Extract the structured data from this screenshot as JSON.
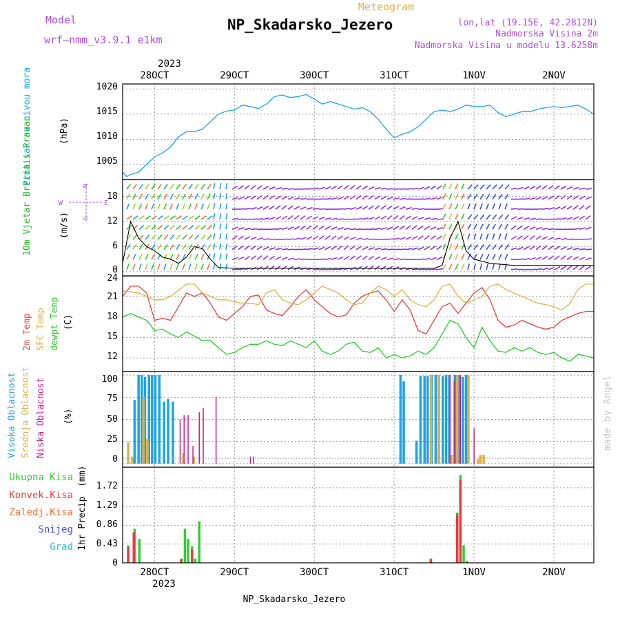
{
  "header": {
    "model_label": "Model",
    "model_name": "wrf—nmm_v3.9.1 e1km",
    "product": "Meteogram",
    "station": "NP_Skadarsko_Jezero",
    "coords": "lon,lat (19.15E, 42.2812N)",
    "elev_station": "Nadmorska Visina 2m",
    "elev_model": "Nadmorska Visina u modelu 13.6258m",
    "footer_station": "NP_Skadarsko_Jezero",
    "credit": "made by Angel"
  },
  "time_axis": {
    "start_day": 27.6,
    "end_day": 33.5,
    "ticks": [
      {
        "day": 28,
        "label": "28OCT"
      },
      {
        "day": 29,
        "label": "29OCT"
      },
      {
        "day": 30,
        "label": "30OCT"
      },
      {
        "day": 31,
        "label": "31OCT"
      },
      {
        "day": 32,
        "label": "1NOV"
      },
      {
        "day": 33,
        "label": "2NOV"
      }
    ],
    "year_label": "2023"
  },
  "colors": {
    "pressure": "#1aa3e8",
    "temp2m": "#e83c3c",
    "sfc_temp": "#e0b040",
    "dewpt": "#22cc22",
    "high_cloud": "#1aa3e8",
    "mid_cloud": "#e0b040",
    "low_cloud": "#cc1a88",
    "total_precip": "#33cc33",
    "conv_precip": "#e83c3c",
    "snow": "#5050e0",
    "graupel": "#33c0c0",
    "wind_label": "#22bb22",
    "legend_purple": "#b04ce0"
  },
  "chart_data": [
    {
      "type": "line",
      "panel": "pressure",
      "ylabel": "Pritisak na nivou mora",
      "unit": "(hPa)",
      "ylim": [
        1002,
        1021
      ],
      "yticks": [
        "1005",
        "1010",
        "1015",
        "1020"
      ],
      "grid": true,
      "series": [
        {
          "x": [
            27.6,
            27.65,
            27.7,
            27.8,
            27.9,
            28.0,
            28.1,
            28.2,
            28.3,
            28.4,
            28.5,
            28.6,
            28.7,
            28.8,
            28.9,
            29.0,
            29.1,
            29.2,
            29.3,
            29.4,
            29.5,
            29.6,
            29.7,
            29.8,
            29.9,
            30.0,
            30.1,
            30.2,
            30.3,
            30.4,
            30.5,
            30.6,
            30.7,
            30.8,
            30.9,
            31.0,
            31.1,
            31.2,
            31.3,
            31.4,
            31.5,
            31.6,
            31.7,
            31.8,
            31.9,
            32.0,
            32.1,
            32.2,
            32.3,
            32.4,
            32.5,
            32.6,
            32.7,
            32.8,
            32.9,
            33.0,
            33.1,
            33.2,
            33.3,
            33.4,
            33.5
          ],
          "y": [
            1003.5,
            1002.6,
            1003.0,
            1003.5,
            1005.0,
            1006.5,
            1007.3,
            1008.5,
            1010.5,
            1011.5,
            1011.5,
            1012.0,
            1013.5,
            1015.0,
            1015.6,
            1015.8,
            1016.8,
            1016.5,
            1016.1,
            1017.0,
            1018.5,
            1018.8,
            1018.3,
            1018.5,
            1018.9,
            1018.0,
            1017.0,
            1017.5,
            1017.0,
            1016.5,
            1016.0,
            1016.3,
            1015.5,
            1014.0,
            1012.0,
            1010.3,
            1011.0,
            1011.5,
            1012.5,
            1014.0,
            1015.5,
            1015.8,
            1015.5,
            1016.0,
            1016.8,
            1016.5,
            1016.5,
            1016.8,
            1015.3,
            1014.5,
            1015.0,
            1015.5,
            1015.5,
            1016.0,
            1016.3,
            1016.5,
            1016.3,
            1016.5,
            1016.8,
            1016.0,
            1015.0
          ],
          "color": "#1aa3e8"
        }
      ]
    },
    {
      "type": "line",
      "panel": "wind",
      "ylabel": "10m Vjetar Brzina i Pravac",
      "unit": "(m/s)",
      "ylim": [
        -1,
        22
      ],
      "yticks": [
        "0",
        "6",
        "12",
        "18"
      ],
      "compass": [
        "N",
        "W",
        "E",
        "S"
      ],
      "series": [
        {
          "name": "speed",
          "x": [
            27.6,
            27.7,
            27.8,
            27.9,
            28.0,
            28.1,
            28.2,
            28.3,
            28.4,
            28.5,
            28.6,
            28.7,
            28.8,
            29.0,
            29.5,
            30.0,
            30.5,
            31.0,
            31.3,
            31.5,
            31.6,
            31.7,
            31.8,
            31.9,
            32.0,
            32.2,
            32.5,
            33.0,
            33.5
          ],
          "y": [
            2.0,
            12.0,
            8.0,
            6.0,
            5.0,
            3.5,
            3.0,
            2.0,
            3.5,
            6.0,
            5.5,
            3.0,
            1.0,
            0.8,
            0.8,
            0.8,
            0.8,
            0.8,
            0.8,
            0.8,
            1.5,
            8.0,
            12.0,
            5.0,
            3.0,
            2.0,
            1.5,
            1.5,
            1.5
          ],
          "color": "#000000"
        }
      ]
    },
    {
      "type": "line",
      "panel": "temperature",
      "ylabel": [
        "2m Temp",
        "SFC Temp",
        "dewpt Temp"
      ],
      "unit": "(C)",
      "ylim": [
        10,
        24
      ],
      "yticks": [
        "12",
        "15",
        "18",
        "21",
        "24"
      ],
      "series": [
        {
          "x": [
            27.6,
            27.7,
            27.8,
            27.9,
            28.0,
            28.1,
            28.2,
            28.3,
            28.4,
            28.5,
            28.6,
            28.7,
            28.8,
            28.9,
            29.0,
            29.1,
            29.2,
            29.3,
            29.4,
            29.5,
            29.6,
            29.7,
            29.8,
            29.9,
            30.0,
            30.1,
            30.2,
            30.3,
            30.4,
            30.5,
            30.6,
            30.7,
            30.8,
            30.9,
            31.0,
            31.1,
            31.2,
            31.3,
            31.4,
            31.5,
            31.6,
            31.7,
            31.8,
            31.9,
            32.0,
            32.1,
            32.2,
            32.3,
            32.4,
            32.5,
            32.6,
            32.7,
            32.8,
            32.9,
            33.0,
            33.1,
            33.2,
            33.3,
            33.4,
            33.5
          ],
          "y": [
            21.0,
            22.5,
            22.5,
            21.5,
            17.5,
            17.8,
            17.5,
            19.5,
            21.5,
            21.0,
            21.5,
            20.0,
            18.0,
            17.5,
            18.5,
            19.5,
            21.0,
            21.2,
            19.0,
            18.5,
            18.2,
            19.5,
            21.0,
            22.0,
            20.5,
            19.5,
            18.5,
            18.0,
            18.3,
            20.0,
            21.0,
            21.5,
            21.8,
            20.5,
            18.8,
            20.5,
            19.0,
            16.0,
            15.5,
            17.5,
            19.5,
            20.0,
            18.5,
            20.0,
            21.5,
            22.3,
            20.5,
            17.5,
            16.5,
            16.8,
            17.5,
            17.0,
            16.5,
            16.2,
            16.5,
            17.5,
            18.0,
            18.5,
            18.8,
            18.8
          ],
          "color": "#e83c3c"
        },
        {
          "x": [
            27.6,
            27.8,
            28.0,
            28.1,
            28.2,
            28.4,
            28.5,
            28.6,
            28.7,
            28.8,
            28.9,
            29.0,
            29.1,
            29.2,
            29.3,
            29.4,
            29.5,
            29.6,
            29.7,
            29.8,
            29.9,
            30.0,
            30.1,
            30.2,
            30.3,
            30.4,
            30.5,
            30.6,
            30.7,
            30.8,
            30.9,
            31.0,
            31.1,
            31.2,
            31.3,
            31.4,
            31.5,
            31.6,
            31.7,
            31.8,
            31.9,
            32.0,
            32.1,
            32.2,
            32.3,
            32.4,
            32.5,
            32.6,
            32.7,
            32.8,
            32.9,
            33.0,
            33.1,
            33.2,
            33.3,
            33.4,
            33.5
          ],
          "y": [
            21.8,
            21.5,
            20.5,
            20.5,
            21.0,
            22.8,
            22.8,
            21.5,
            21.0,
            20.5,
            20.5,
            20.2,
            20.0,
            20.0,
            19.8,
            21.5,
            22.0,
            20.5,
            20.0,
            19.8,
            20.5,
            21.5,
            22.5,
            22.0,
            21.5,
            20.5,
            19.8,
            20.0,
            21.5,
            22.5,
            22.0,
            21.0,
            22.0,
            20.5,
            19.8,
            19.5,
            20.5,
            22.5,
            22.8,
            21.0,
            20.0,
            20.5,
            21.0,
            22.5,
            22.8,
            22.0,
            21.5,
            21.0,
            20.5,
            20.0,
            19.8,
            19.5,
            19.0,
            20.0,
            22.0,
            22.8,
            22.8
          ],
          "color": "#e0b040"
        },
        {
          "x": [
            27.6,
            27.7,
            27.8,
            27.9,
            28.0,
            28.1,
            28.2,
            28.3,
            28.4,
            28.5,
            28.6,
            28.7,
            28.8,
            28.9,
            29.0,
            29.1,
            29.2,
            29.3,
            29.4,
            29.5,
            29.6,
            29.7,
            29.8,
            29.9,
            30.0,
            30.1,
            30.2,
            30.3,
            30.4,
            30.5,
            30.6,
            30.7,
            30.8,
            30.9,
            31.0,
            31.1,
            31.2,
            31.3,
            31.4,
            31.5,
            31.6,
            31.7,
            31.8,
            31.9,
            32.0,
            32.1,
            32.2,
            32.3,
            32.4,
            32.5,
            32.6,
            32.7,
            32.8,
            32.9,
            33.0,
            33.1,
            33.2,
            33.3,
            33.4,
            33.5
          ],
          "y": [
            18.0,
            18.5,
            18.0,
            17.5,
            16.0,
            16.2,
            15.5,
            15.0,
            15.8,
            15.2,
            14.5,
            14.5,
            13.5,
            12.5,
            12.8,
            13.5,
            14.0,
            14.0,
            14.5,
            14.0,
            13.8,
            14.5,
            14.0,
            13.5,
            14.5,
            13.0,
            12.5,
            13.0,
            14.0,
            14.3,
            13.0,
            12.8,
            13.5,
            12.0,
            12.5,
            12.0,
            12.3,
            13.0,
            12.5,
            13.5,
            15.5,
            17.5,
            17.0,
            15.0,
            13.5,
            16.5,
            14.5,
            13.0,
            12.8,
            13.5,
            13.0,
            13.5,
            12.8,
            12.5,
            12.8,
            12.0,
            11.5,
            12.5,
            12.3,
            12.0
          ],
          "color": "#22cc22"
        }
      ]
    },
    {
      "type": "bar",
      "panel": "cloud",
      "ylabel": [
        "Visoka Oblacnost",
        "Srednja Oblacnost",
        "Niska Oblacnost"
      ],
      "unit": "(%)",
      "ylim": [
        -4,
        104
      ],
      "yticks": [
        "0",
        "25",
        "50",
        "75",
        "100"
      ],
      "series": [
        {
          "x": [
            27.75,
            27.8,
            27.84,
            27.88,
            27.93,
            27.97,
            28.01,
            28.06,
            28.12,
            28.17,
            28.23,
            31.08,
            31.12,
            31.28,
            31.33,
            31.38,
            31.42,
            31.47,
            31.52,
            31.56,
            31.61,
            31.65,
            31.69,
            31.76,
            31.81,
            31.86,
            31.9
          ],
          "y": [
            72,
            100,
            100,
            98,
            100,
            100,
            100,
            100,
            70,
            73,
            70,
            100,
            93,
            26,
            99,
            99,
            99,
            100,
            100,
            100,
            99,
            100,
            100,
            100,
            100,
            98,
            100
          ],
          "color": "#1aa3e8"
        },
        {
          "x": [
            27.67,
            27.72,
            27.86,
            27.91,
            28.36,
            28.49,
            31.46,
            31.56,
            31.72,
            31.79,
            31.93,
            32.05,
            32.08,
            32.12
          ],
          "y": [
            24,
            8,
            75,
            28,
            12,
            8,
            100,
            100,
            10,
            100,
            100,
            5,
            10,
            10
          ],
          "color": "#e0b040"
        },
        {
          "x": [
            28.32,
            28.37,
            28.42,
            28.48,
            28.56,
            28.61,
            28.77,
            29.2,
            29.24,
            31.7,
            31.75,
            31.83,
            32.0
          ],
          "y": [
            50,
            55,
            55,
            20,
            58,
            63,
            75,
            8,
            8,
            100,
            93,
            100,
            40
          ],
          "color": "#cc1a88"
        }
      ]
    },
    {
      "type": "bar",
      "panel": "precip",
      "ylabel": "1hr Precip",
      "unit": "(mm)",
      "ylim": [
        0,
        2.19
      ],
      "yticks": [
        "0",
        "0.43",
        "0.86",
        "1.29",
        "1.72"
      ],
      "legend": [
        "Ukupna Kisa",
        "Konvek.Kisa",
        "Zaledj.Kisa",
        "Snijeg",
        "Grad"
      ],
      "series": [
        {
          "name": "Ukupna Kisa",
          "x": [
            27.67,
            27.75,
            27.81,
            28.34,
            28.38,
            28.42,
            28.47,
            28.51,
            28.56,
            31.46,
            31.79,
            31.83,
            31.87,
            31.91
          ],
          "y": [
            0.4,
            0.78,
            0.55,
            0.1,
            0.78,
            0.55,
            0.38,
            0.1,
            0.95,
            0.1,
            1.15,
            2.01,
            0.4,
            0.05
          ],
          "color": "#33cc33"
        },
        {
          "name": "Konvek.Kisa",
          "x": [
            27.67,
            27.74,
            28.33,
            28.47,
            31.46,
            31.79,
            31.83
          ],
          "y": [
            0.36,
            0.7,
            0.08,
            0.3,
            0.08,
            1.1,
            1.9
          ],
          "color": "#e83c3c"
        }
      ]
    }
  ]
}
